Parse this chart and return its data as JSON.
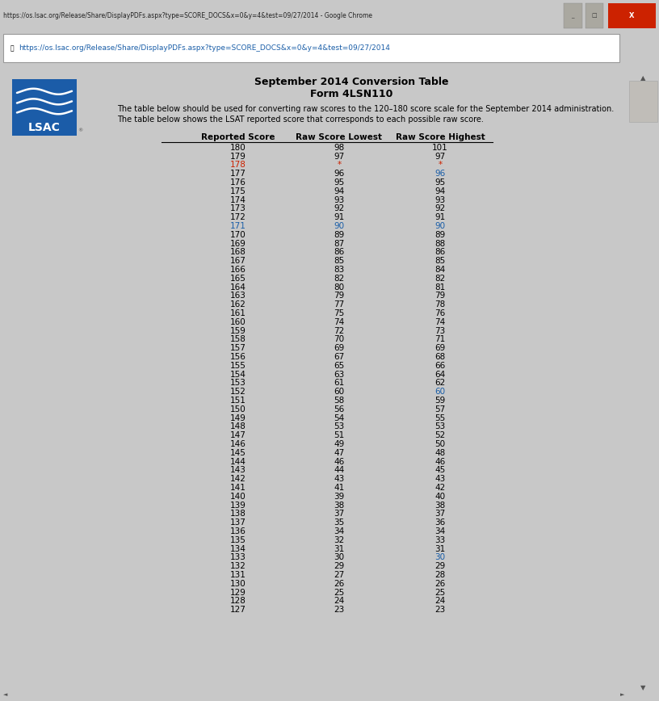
{
  "title1": "September 2014 Conversion Table",
  "title2": "Form 4LSN110",
  "description_line1": "The table below should be used for converting raw scores to the 120–180 score scale for the September 2014 administration.",
  "description_line2": "The table below shows the LSAT reported score that corresponds to each possible raw score.",
  "col_headers": [
    "Reported Score",
    "Raw Score Lowest",
    "Raw Score Highest"
  ],
  "rows": [
    {
      "rep": 180,
      "low": "98",
      "high": "101",
      "rep_c": "black",
      "low_c": "black",
      "high_c": "black"
    },
    {
      "rep": 179,
      "low": "97",
      "high": "97",
      "rep_c": "black",
      "low_c": "black",
      "high_c": "black"
    },
    {
      "rep": 178,
      "low": "*",
      "high": "*",
      "rep_c": "red",
      "low_c": "red",
      "high_c": "red"
    },
    {
      "rep": 177,
      "low": "96",
      "high": "96",
      "rep_c": "black",
      "low_c": "black",
      "high_c": "blue"
    },
    {
      "rep": 176,
      "low": "95",
      "high": "95",
      "rep_c": "black",
      "low_c": "black",
      "high_c": "black"
    },
    {
      "rep": 175,
      "low": "94",
      "high": "94",
      "rep_c": "black",
      "low_c": "black",
      "high_c": "black"
    },
    {
      "rep": 174,
      "low": "93",
      "high": "93",
      "rep_c": "black",
      "low_c": "black",
      "high_c": "black"
    },
    {
      "rep": 173,
      "low": "92",
      "high": "92",
      "rep_c": "black",
      "low_c": "black",
      "high_c": "black"
    },
    {
      "rep": 172,
      "low": "91",
      "high": "91",
      "rep_c": "black",
      "low_c": "black",
      "high_c": "black"
    },
    {
      "rep": 171,
      "low": "90",
      "high": "90",
      "rep_c": "blue",
      "low_c": "blue",
      "high_c": "blue"
    },
    {
      "rep": 170,
      "low": "89",
      "high": "89",
      "rep_c": "black",
      "low_c": "black",
      "high_c": "black"
    },
    {
      "rep": 169,
      "low": "87",
      "high": "88",
      "rep_c": "black",
      "low_c": "black",
      "high_c": "black"
    },
    {
      "rep": 168,
      "low": "86",
      "high": "86",
      "rep_c": "black",
      "low_c": "black",
      "high_c": "black"
    },
    {
      "rep": 167,
      "low": "85",
      "high": "85",
      "rep_c": "black",
      "low_c": "black",
      "high_c": "black"
    },
    {
      "rep": 166,
      "low": "83",
      "high": "84",
      "rep_c": "black",
      "low_c": "black",
      "high_c": "black"
    },
    {
      "rep": 165,
      "low": "82",
      "high": "82",
      "rep_c": "black",
      "low_c": "black",
      "high_c": "black"
    },
    {
      "rep": 164,
      "low": "80",
      "high": "81",
      "rep_c": "black",
      "low_c": "black",
      "high_c": "black"
    },
    {
      "rep": 163,
      "low": "79",
      "high": "79",
      "rep_c": "black",
      "low_c": "black",
      "high_c": "black"
    },
    {
      "rep": 162,
      "low": "77",
      "high": "78",
      "rep_c": "black",
      "low_c": "black",
      "high_c": "black"
    },
    {
      "rep": 161,
      "low": "75",
      "high": "76",
      "rep_c": "black",
      "low_c": "black",
      "high_c": "black"
    },
    {
      "rep": 160,
      "low": "74",
      "high": "74",
      "rep_c": "black",
      "low_c": "black",
      "high_c": "black"
    },
    {
      "rep": 159,
      "low": "72",
      "high": "73",
      "rep_c": "black",
      "low_c": "black",
      "high_c": "black"
    },
    {
      "rep": 158,
      "low": "70",
      "high": "71",
      "rep_c": "black",
      "low_c": "black",
      "high_c": "black"
    },
    {
      "rep": 157,
      "low": "69",
      "high": "69",
      "rep_c": "black",
      "low_c": "black",
      "high_c": "black"
    },
    {
      "rep": 156,
      "low": "67",
      "high": "68",
      "rep_c": "black",
      "low_c": "black",
      "high_c": "black"
    },
    {
      "rep": 155,
      "low": "65",
      "high": "66",
      "rep_c": "black",
      "low_c": "black",
      "high_c": "black"
    },
    {
      "rep": 154,
      "low": "63",
      "high": "64",
      "rep_c": "black",
      "low_c": "black",
      "high_c": "black"
    },
    {
      "rep": 153,
      "low": "61",
      "high": "62",
      "rep_c": "black",
      "low_c": "black",
      "high_c": "black"
    },
    {
      "rep": 152,
      "low": "60",
      "high": "60",
      "rep_c": "black",
      "low_c": "black",
      "high_c": "blue"
    },
    {
      "rep": 151,
      "low": "58",
      "high": "59",
      "rep_c": "black",
      "low_c": "black",
      "high_c": "black"
    },
    {
      "rep": 150,
      "low": "56",
      "high": "57",
      "rep_c": "black",
      "low_c": "black",
      "high_c": "black"
    },
    {
      "rep": 149,
      "low": "54",
      "high": "55",
      "rep_c": "black",
      "low_c": "black",
      "high_c": "black"
    },
    {
      "rep": 148,
      "low": "53",
      "high": "53",
      "rep_c": "black",
      "low_c": "black",
      "high_c": "black"
    },
    {
      "rep": 147,
      "low": "51",
      "high": "52",
      "rep_c": "black",
      "low_c": "black",
      "high_c": "black"
    },
    {
      "rep": 146,
      "low": "49",
      "high": "50",
      "rep_c": "black",
      "low_c": "black",
      "high_c": "black"
    },
    {
      "rep": 145,
      "low": "47",
      "high": "48",
      "rep_c": "black",
      "low_c": "black",
      "high_c": "black"
    },
    {
      "rep": 144,
      "low": "46",
      "high": "46",
      "rep_c": "black",
      "low_c": "black",
      "high_c": "black"
    },
    {
      "rep": 143,
      "low": "44",
      "high": "45",
      "rep_c": "black",
      "low_c": "black",
      "high_c": "black"
    },
    {
      "rep": 142,
      "low": "43",
      "high": "43",
      "rep_c": "black",
      "low_c": "black",
      "high_c": "black"
    },
    {
      "rep": 141,
      "low": "41",
      "high": "42",
      "rep_c": "black",
      "low_c": "black",
      "high_c": "black"
    },
    {
      "rep": 140,
      "low": "39",
      "high": "40",
      "rep_c": "black",
      "low_c": "black",
      "high_c": "black"
    },
    {
      "rep": 139,
      "low": "38",
      "high": "38",
      "rep_c": "black",
      "low_c": "black",
      "high_c": "black"
    },
    {
      "rep": 138,
      "low": "37",
      "high": "37",
      "rep_c": "black",
      "low_c": "black",
      "high_c": "black"
    },
    {
      "rep": 137,
      "low": "35",
      "high": "36",
      "rep_c": "black",
      "low_c": "black",
      "high_c": "black"
    },
    {
      "rep": 136,
      "low": "34",
      "high": "34",
      "rep_c": "black",
      "low_c": "black",
      "high_c": "black"
    },
    {
      "rep": 135,
      "low": "32",
      "high": "33",
      "rep_c": "black",
      "low_c": "black",
      "high_c": "black"
    },
    {
      "rep": 134,
      "low": "31",
      "high": "31",
      "rep_c": "black",
      "low_c": "black",
      "high_c": "black"
    },
    {
      "rep": 133,
      "low": "30",
      "high": "30",
      "rep_c": "black",
      "low_c": "black",
      "high_c": "blue"
    },
    {
      "rep": 132,
      "low": "29",
      "high": "29",
      "rep_c": "black",
      "low_c": "black",
      "high_c": "black"
    },
    {
      "rep": 131,
      "low": "27",
      "high": "28",
      "rep_c": "black",
      "low_c": "black",
      "high_c": "black"
    },
    {
      "rep": 130,
      "low": "26",
      "high": "26",
      "rep_c": "black",
      "low_c": "black",
      "high_c": "black"
    },
    {
      "rep": 129,
      "low": "25",
      "high": "25",
      "rep_c": "black",
      "low_c": "black",
      "high_c": "black"
    },
    {
      "rep": 128,
      "low": "24",
      "high": "24",
      "rep_c": "black",
      "low_c": "black",
      "high_c": "black"
    },
    {
      "rep": 127,
      "low": "23",
      "high": "23",
      "rep_c": "black",
      "low_c": "black",
      "high_c": "black"
    }
  ],
  "color_map": {
    "black": "#000000",
    "blue": "#1a5ea8",
    "red": "#cc2200"
  },
  "browser_title_bg": "#c8c8c8",
  "browser_title_text": "#000000",
  "url_bar_bg": "#ffffff",
  "url_bar_border": "#888888",
  "content_bg": "#ffffff",
  "outer_bg": "#c8c8c8",
  "logo_blue": "#1b5ca8",
  "logo_blue2": "#2d72b8",
  "scrollbar_bg": "#e0ddd8",
  "scrollbar_thumb": "#b0aaa0"
}
